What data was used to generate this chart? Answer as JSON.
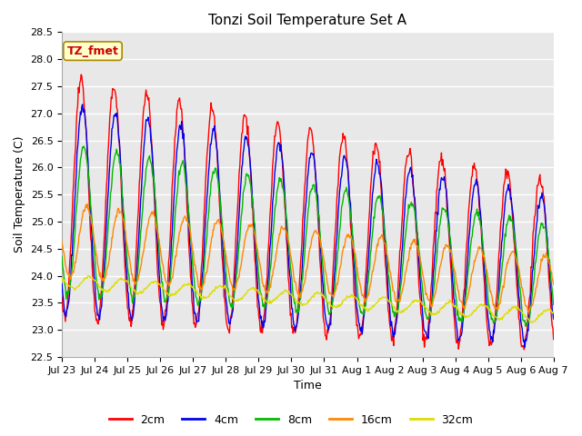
{
  "title": "Tonzi Soil Temperature Set A",
  "xlabel": "Time",
  "ylabel": "Soil Temperature (C)",
  "ylim": [
    22.5,
    28.5
  ],
  "yticks": [
    22.5,
    23.0,
    23.5,
    24.0,
    24.5,
    25.0,
    25.5,
    26.0,
    26.5,
    27.0,
    27.5,
    28.0,
    28.5
  ],
  "xtick_labels": [
    "Jul 23",
    "Jul 24",
    "Jul 25",
    "Jul 26",
    "Jul 27",
    "Jul 28",
    "Jul 29",
    "Jul 30",
    "Jul 31",
    "Aug 1",
    "Aug 2",
    "Aug 3",
    "Aug 4",
    "Aug 5",
    "Aug 6",
    "Aug 7"
  ],
  "annotation_text": "TZ_fmet",
  "annotation_color": "#cc0000",
  "annotation_bg": "#ffffcc",
  "annotation_border": "#aa8800",
  "colors": {
    "2cm": "#ff0000",
    "4cm": "#0000ee",
    "8cm": "#00bb00",
    "16cm": "#ff8800",
    "32cm": "#dddd00"
  },
  "fig_bg": "#ffffff",
  "plot_bg": "#e8e8e8",
  "grid_color": "#ffffff",
  "title_fontsize": 11,
  "label_fontsize": 9,
  "tick_fontsize": 8,
  "legend_fontsize": 9
}
